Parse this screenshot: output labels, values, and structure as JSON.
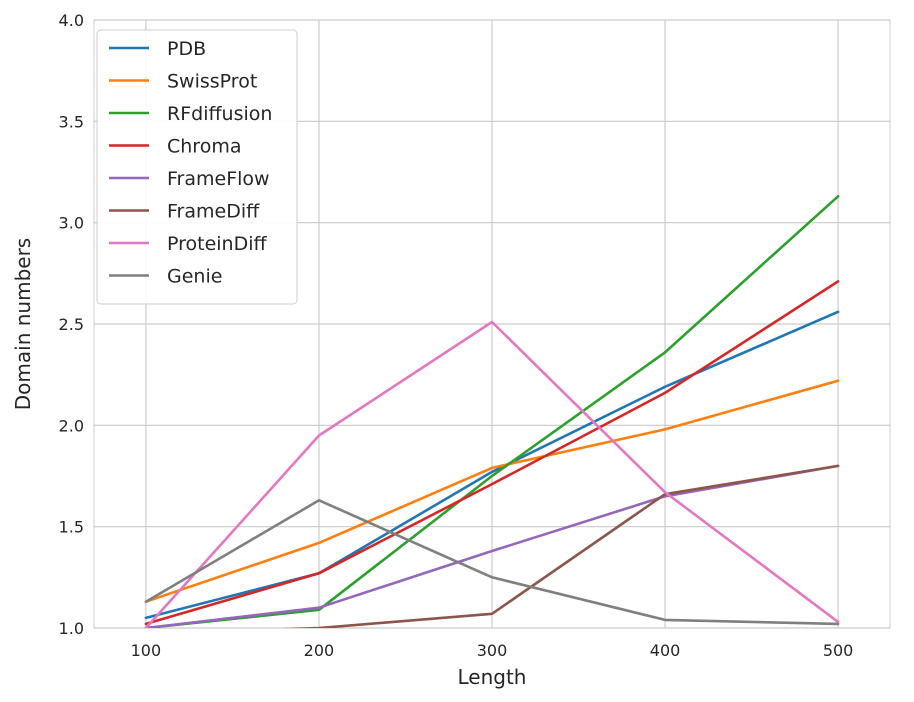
{
  "chart_data": {
    "type": "line",
    "title": "",
    "xlabel": "Length",
    "ylabel": "Domain numbers",
    "x": [
      100,
      200,
      300,
      400,
      500
    ],
    "xlim": [
      70,
      530
    ],
    "ylim": [
      1.0,
      4.0
    ],
    "xticks": [
      "100",
      "200",
      "300",
      "400",
      "500"
    ],
    "yticks": [
      "1.0",
      "1.5",
      "2.0",
      "2.5",
      "3.0",
      "3.5",
      "4.0"
    ],
    "grid": true,
    "legend_position": "top-left",
    "series": [
      {
        "name": "PDB",
        "color": "#1f77b4",
        "values": [
          1.05,
          1.27,
          1.77,
          2.19,
          2.56
        ]
      },
      {
        "name": "SwissProt",
        "color": "#ff7f0e",
        "values": [
          1.13,
          1.42,
          1.79,
          1.98,
          2.22
        ]
      },
      {
        "name": "RFdiffusion",
        "color": "#2ca02c",
        "values": [
          1.0,
          1.09,
          1.75,
          2.36,
          3.13
        ]
      },
      {
        "name": "Chroma",
        "color": "#d62728",
        "values": [
          1.02,
          1.27,
          1.71,
          2.16,
          2.71
        ]
      },
      {
        "name": "FrameFlow",
        "color": "#9467bd",
        "values": [
          1.0,
          1.1,
          1.38,
          1.65,
          1.8
        ]
      },
      {
        "name": "FrameDiff",
        "color": "#8c564b",
        "values": [
          0.97,
          1.0,
          1.07,
          1.66,
          1.8
        ]
      },
      {
        "name": "ProteinDiff",
        "color": "#e377c2",
        "values": [
          1.0,
          1.95,
          2.51,
          1.67,
          1.03
        ]
      },
      {
        "name": "Genie",
        "color": "#7f7f7f",
        "values": [
          1.13,
          1.63,
          1.25,
          1.04,
          1.02
        ]
      }
    ]
  }
}
